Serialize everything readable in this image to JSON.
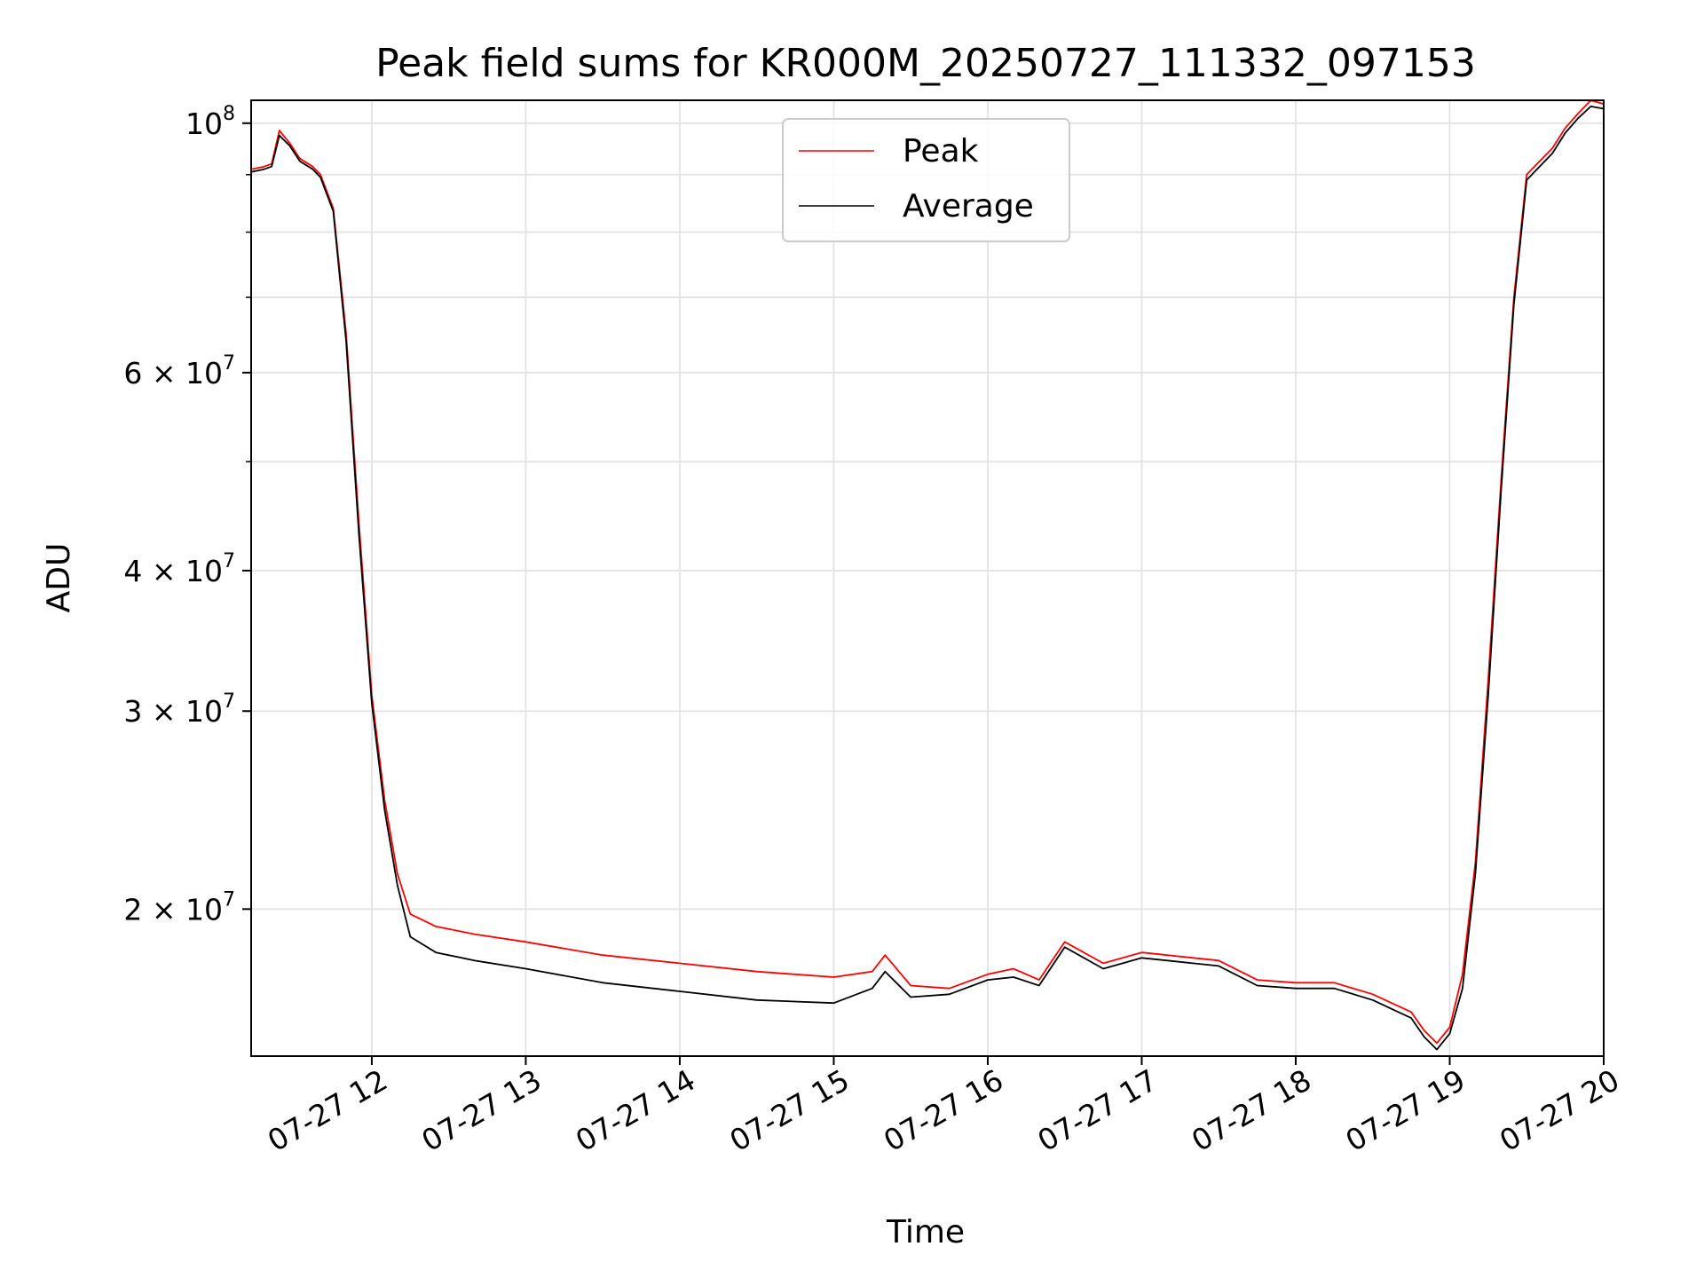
{
  "chart_data": {
    "type": "line",
    "title": "Peak field sums for KR000M_20250727_111332_097153",
    "xlabel": "Time",
    "ylabel": "ADU",
    "x_axis": {
      "type": "time",
      "start": "2025-07-27 11:13",
      "end": "2025-07-27 20:00"
    },
    "y_axis": {
      "scale": "log",
      "ylim": [
        14800000,
        104800000
      ]
    },
    "grid": true,
    "legend_position": "upper-center",
    "x_ticks": [
      "07-27 12",
      "07-27 13",
      "07-27 14",
      "07-27 15",
      "07-27 16",
      "07-27 17",
      "07-27 18",
      "07-27 19",
      "07-27 20"
    ],
    "y_ticks": [
      {
        "value": 20000000,
        "label": "2 × 10",
        "exp": "7"
      },
      {
        "value": 30000000,
        "label": "3 × 10",
        "exp": "7"
      },
      {
        "value": 40000000,
        "label": "4 × 10",
        "exp": "7"
      },
      {
        "value": 60000000,
        "label": "6 × 10",
        "exp": "7"
      },
      {
        "value": 100000000,
        "label": "10",
        "exp": "8"
      }
    ],
    "series": [
      {
        "name": "Peak",
        "color": "#ff0000",
        "x": [
          "2025-07-27 11:13",
          "2025-07-27 11:18",
          "2025-07-27 11:21",
          "2025-07-27 11:24",
          "2025-07-27 11:28",
          "2025-07-27 11:32",
          "2025-07-27 11:37",
          "2025-07-27 11:40",
          "2025-07-27 11:45",
          "2025-07-27 11:50",
          "2025-07-27 11:55",
          "2025-07-27 12:00",
          "2025-07-27 12:05",
          "2025-07-27 12:10",
          "2025-07-27 12:15",
          "2025-07-27 12:25",
          "2025-07-27 12:40",
          "2025-07-27 13:00",
          "2025-07-27 13:30",
          "2025-07-27 14:00",
          "2025-07-27 14:30",
          "2025-07-27 15:00",
          "2025-07-27 15:15",
          "2025-07-27 15:20",
          "2025-07-27 15:30",
          "2025-07-27 15:45",
          "2025-07-27 16:00",
          "2025-07-27 16:10",
          "2025-07-27 16:20",
          "2025-07-27 16:30",
          "2025-07-27 16:45",
          "2025-07-27 17:00",
          "2025-07-27 17:10",
          "2025-07-27 17:20",
          "2025-07-27 17:30",
          "2025-07-27 17:45",
          "2025-07-27 18:00",
          "2025-07-27 18:15",
          "2025-07-27 18:30",
          "2025-07-27 18:45",
          "2025-07-27 18:50",
          "2025-07-27 18:55",
          "2025-07-27 19:00",
          "2025-07-27 19:05",
          "2025-07-27 19:10",
          "2025-07-27 19:15",
          "2025-07-27 19:20",
          "2025-07-27 19:25",
          "2025-07-27 19:30",
          "2025-07-27 19:35",
          "2025-07-27 19:40",
          "2025-07-27 19:45",
          "2025-07-27 19:50",
          "2025-07-27 19:55",
          "2025-07-27 20:00"
        ],
        "y": [
          91000000,
          91500000,
          92000000,
          98500000,
          96000000,
          93000000,
          91500000,
          90000000,
          84000000,
          65000000,
          44000000,
          31000000,
          25000000,
          21500000,
          19800000,
          19300000,
          19000000,
          18700000,
          18200000,
          17900000,
          17600000,
          17400000,
          17600000,
          18200000,
          17100000,
          17000000,
          17500000,
          17700000,
          17300000,
          18700000,
          17900000,
          18300000,
          18200000,
          18100000,
          18000000,
          17300000,
          17200000,
          17200000,
          16800000,
          16200000,
          15600000,
          15200000,
          15700000,
          17500000,
          22000000,
          32000000,
          48000000,
          70000000,
          90000000,
          92500000,
          95000000,
          99000000,
          102000000,
          104800000,
          104000000
        ]
      },
      {
        "name": "Average",
        "color": "#000000",
        "x": [
          "2025-07-27 11:13",
          "2025-07-27 11:18",
          "2025-07-27 11:21",
          "2025-07-27 11:24",
          "2025-07-27 11:28",
          "2025-07-27 11:32",
          "2025-07-27 11:37",
          "2025-07-27 11:40",
          "2025-07-27 11:45",
          "2025-07-27 11:50",
          "2025-07-27 11:55",
          "2025-07-27 12:00",
          "2025-07-27 12:05",
          "2025-07-27 12:10",
          "2025-07-27 12:15",
          "2025-07-27 12:25",
          "2025-07-27 12:40",
          "2025-07-27 13:00",
          "2025-07-27 13:30",
          "2025-07-27 14:00",
          "2025-07-27 14:30",
          "2025-07-27 15:00",
          "2025-07-27 15:15",
          "2025-07-27 15:20",
          "2025-07-27 15:30",
          "2025-07-27 15:45",
          "2025-07-27 16:00",
          "2025-07-27 16:10",
          "2025-07-27 16:20",
          "2025-07-27 16:30",
          "2025-07-27 16:45",
          "2025-07-27 17:00",
          "2025-07-27 17:10",
          "2025-07-27 17:20",
          "2025-07-27 17:30",
          "2025-07-27 17:45",
          "2025-07-27 18:00",
          "2025-07-27 18:15",
          "2025-07-27 18:30",
          "2025-07-27 18:45",
          "2025-07-27 18:50",
          "2025-07-27 18:55",
          "2025-07-27 19:00",
          "2025-07-27 19:05",
          "2025-07-27 19:10",
          "2025-07-27 19:15",
          "2025-07-27 19:20",
          "2025-07-27 19:25",
          "2025-07-27 19:30",
          "2025-07-27 19:35",
          "2025-07-27 19:40",
          "2025-07-27 19:45",
          "2025-07-27 19:50",
          "2025-07-27 19:55",
          "2025-07-27 20:00"
        ],
        "y": [
          90500000,
          91000000,
          91500000,
          97500000,
          95500000,
          92500000,
          91000000,
          89500000,
          83500000,
          64000000,
          43000000,
          30500000,
          24500000,
          21000000,
          18900000,
          18300000,
          18000000,
          17700000,
          17200000,
          16900000,
          16600000,
          16500000,
          17000000,
          17600000,
          16700000,
          16800000,
          17300000,
          17400000,
          17100000,
          18500000,
          17700000,
          18100000,
          18000000,
          17900000,
          17800000,
          17100000,
          17000000,
          17000000,
          16600000,
          16000000,
          15400000,
          15000000,
          15500000,
          17000000,
          21500000,
          31000000,
          47000000,
          69000000,
          89000000,
          91500000,
          94000000,
          98000000,
          101000000,
          103500000,
          103000000
        ]
      }
    ]
  }
}
